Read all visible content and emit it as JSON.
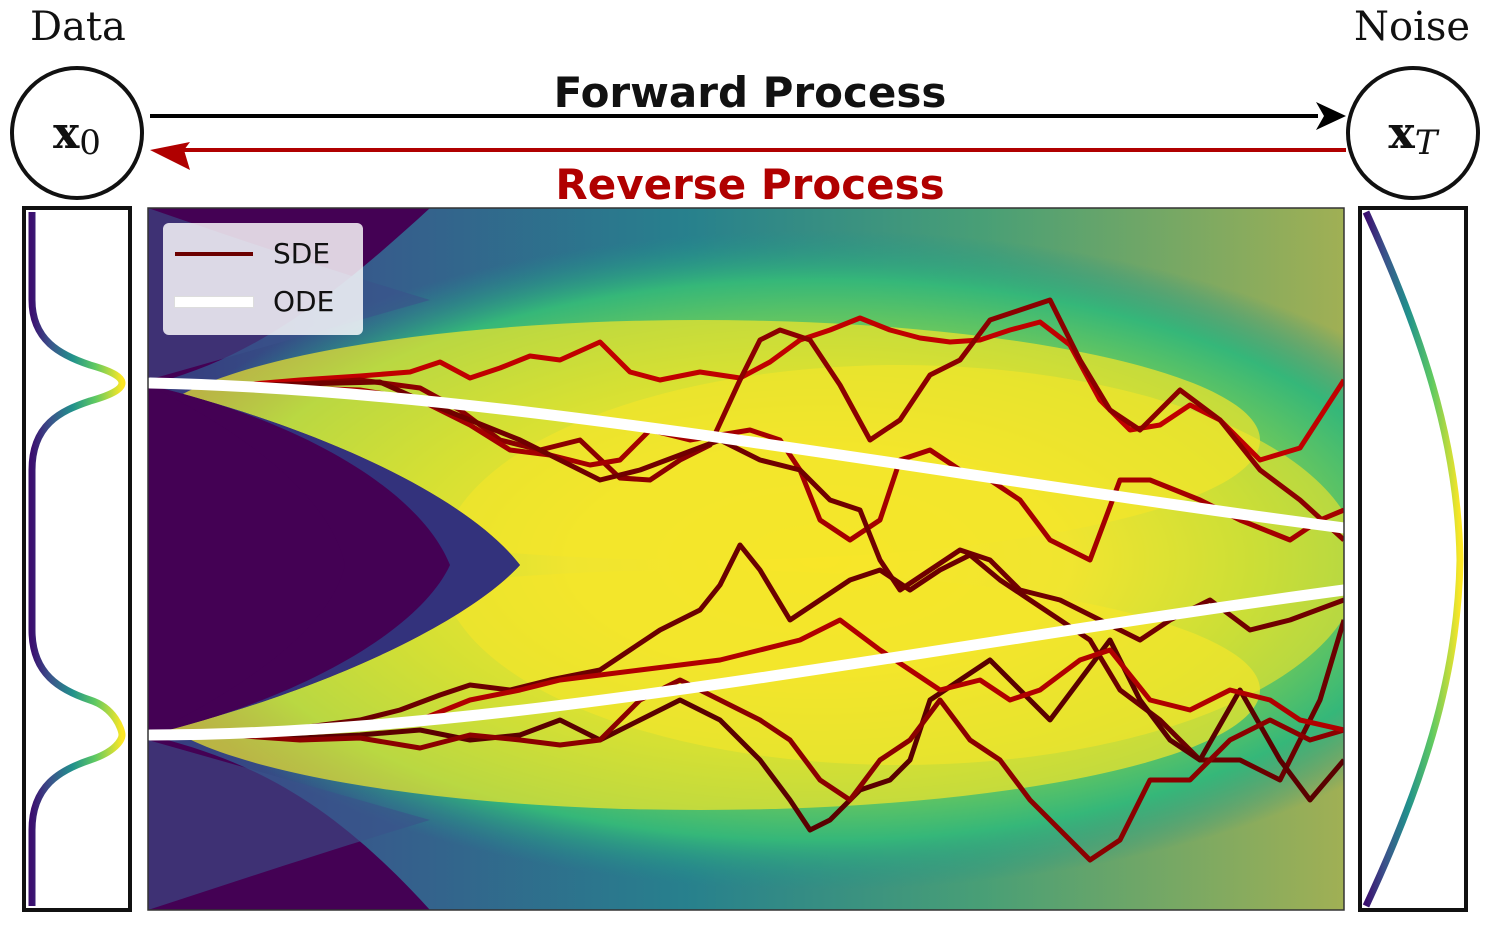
{
  "labels": {
    "data": "Data",
    "noise": "Noise",
    "x0": "x",
    "x0_sub": "0",
    "xT": "x",
    "xT_sub": "T",
    "forward": "Forward Process",
    "reverse": "Reverse Process"
  },
  "legend": {
    "sde": "SDE",
    "ode": "ODE"
  },
  "colors": {
    "forward_arrow": "#000000",
    "reverse_arrow": "#b00000",
    "ode": "#ffffff",
    "sde_1": "#6b0000",
    "sde_2": "#c00000",
    "sde_3": "#8b0000",
    "sde_4": "#5a0000"
  },
  "icons": {
    "legend_sde": "line-swatch",
    "legend_ode": "line-swatch"
  }
}
